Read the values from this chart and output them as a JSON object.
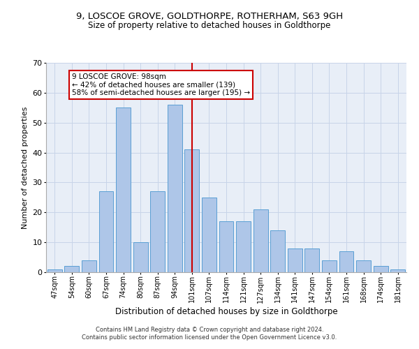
{
  "title": "9, LOSCOE GROVE, GOLDTHORPE, ROTHERHAM, S63 9GH",
  "subtitle": "Size of property relative to detached houses in Goldthorpe",
  "xlabel": "Distribution of detached houses by size in Goldthorpe",
  "ylabel": "Number of detached properties",
  "categories": [
    "47sqm",
    "54sqm",
    "60sqm",
    "67sqm",
    "74sqm",
    "80sqm",
    "87sqm",
    "94sqm",
    "101sqm",
    "107sqm",
    "114sqm",
    "121sqm",
    "127sqm",
    "134sqm",
    "141sqm",
    "147sqm",
    "154sqm",
    "161sqm",
    "168sqm",
    "174sqm",
    "181sqm"
  ],
  "values": [
    1,
    2,
    4,
    27,
    55,
    10,
    27,
    56,
    41,
    25,
    17,
    17,
    21,
    14,
    8,
    8,
    4,
    7,
    4,
    2,
    1
  ],
  "bar_color": "#aec6e8",
  "bar_edge_color": "#5a9fd4",
  "red_line_index": 8,
  "annotation_lines": [
    "9 LOSCOE GROVE: 98sqm",
    "← 42% of detached houses are smaller (139)",
    "58% of semi-detached houses are larger (195) →"
  ],
  "annotation_box_color": "#ffffff",
  "annotation_box_edge_color": "#cc0000",
  "red_line_color": "#cc0000",
  "ylim": [
    0,
    70
  ],
  "yticks": [
    0,
    10,
    20,
    30,
    40,
    50,
    60,
    70
  ],
  "grid_color": "#c8d4e8",
  "background_color": "#e8eef7",
  "footer_line1": "Contains HM Land Registry data © Crown copyright and database right 2024.",
  "footer_line2": "Contains public sector information licensed under the Open Government Licence v3.0."
}
